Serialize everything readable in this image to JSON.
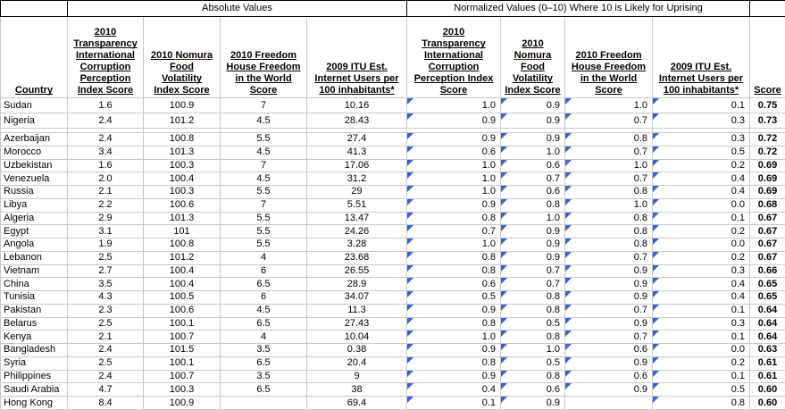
{
  "sections": {
    "absolute": "Absolute Values",
    "normalized": "Normalized Values (0–10) Where 10 is Likely for Uprising"
  },
  "misspelled_word": "Nomura",
  "columns": {
    "country": "Country",
    "abs_corruption": [
      "2010",
      "Transparency",
      "International",
      "Corruption",
      "Perception",
      "Index Score"
    ],
    "abs_nomura": [
      "2010 Nomura",
      "Food",
      "Volatility",
      "Index Score"
    ],
    "abs_freedom": [
      "2010 Freedom",
      "House Freedom",
      "in the World",
      "Score"
    ],
    "abs_itu": [
      "2009 ITU Est.",
      "Internet Users per",
      "100 inhabitants*"
    ],
    "norm_corruption": [
      "2010",
      "Transparency",
      "International",
      "Corruption",
      "Perception Index",
      "Score"
    ],
    "norm_nomura": [
      "2010",
      "Nomura",
      "Food",
      "Volatility",
      "Index Score"
    ],
    "norm_freedom": [
      "2010 Freedom",
      "House Freedom",
      "in the World",
      "Score"
    ],
    "norm_itu": [
      "2009 ITU Est.",
      "Internet Users per",
      "100 inhabitants*"
    ],
    "score": "Score"
  },
  "colors": {
    "comment_triangle": "#3a5fd9",
    "gridline": "#c8c8c8",
    "section_border": "#000000"
  },
  "rows": [
    {
      "country": "Sudan",
      "abs": [
        "1.6",
        "100.9",
        "7",
        "10.16"
      ],
      "norm": [
        "1.0",
        "0.9",
        "1.0",
        "0.1"
      ],
      "score": "0.75"
    },
    {
      "country": "Nigeria",
      "abs": [
        "2.4",
        "101.2",
        "4.5",
        "28.43"
      ],
      "norm": [
        "0.9",
        "0.9",
        "0.7",
        "0.3"
      ],
      "score": "0.73"
    },
    {
      "country": "Azerbaijan",
      "abs": [
        "2.4",
        "100.8",
        "5.5",
        "27.4"
      ],
      "norm": [
        "0.9",
        "0.9",
        "0.8",
        "0.3"
      ],
      "score": "0.72"
    },
    {
      "country": "Morocco",
      "abs": [
        "3.4",
        "101.3",
        "4.5",
        "41.3"
      ],
      "norm": [
        "0.6",
        "1.0",
        "0.7",
        "0.5"
      ],
      "score": "0.72"
    },
    {
      "country": "Uzbekistan",
      "abs": [
        "1.6",
        "100.3",
        "7",
        "17.06"
      ],
      "norm": [
        "1.0",
        "0.6",
        "1.0",
        "0.2"
      ],
      "score": "0.69"
    },
    {
      "country": "Venezuela",
      "abs": [
        "2.0",
        "100.4",
        "4.5",
        "31.2"
      ],
      "norm": [
        "1.0",
        "0.7",
        "0.7",
        "0.4"
      ],
      "score": "0.69"
    },
    {
      "country": "Russia",
      "abs": [
        "2.1",
        "100.3",
        "5.5",
        "29"
      ],
      "norm": [
        "1.0",
        "0.6",
        "0.8",
        "0.4"
      ],
      "score": "0.69"
    },
    {
      "country": "Libya",
      "abs": [
        "2.2",
        "100.6",
        "7",
        "5.51"
      ],
      "norm": [
        "0.9",
        "0.8",
        "1.0",
        "0.0"
      ],
      "score": "0.68"
    },
    {
      "country": "Algeria",
      "abs": [
        "2.9",
        "101.3",
        "5.5",
        "13.47"
      ],
      "norm": [
        "0.8",
        "1.0",
        "0.8",
        "0.1"
      ],
      "score": "0.67"
    },
    {
      "country": "Egypt",
      "abs": [
        "3.1",
        "101",
        "5.5",
        "24.26"
      ],
      "norm": [
        "0.7",
        "0.9",
        "0.8",
        "0.2"
      ],
      "score": "0.67"
    },
    {
      "country": "Angola",
      "abs": [
        "1.9",
        "100.8",
        "5.5",
        "3.28"
      ],
      "norm": [
        "1.0",
        "0.9",
        "0.8",
        "0.0"
      ],
      "score": "0.67"
    },
    {
      "country": "Lebanon",
      "abs": [
        "2.5",
        "101.2",
        "4",
        "23.68"
      ],
      "norm": [
        "0.8",
        "0.9",
        "0.7",
        "0.2"
      ],
      "score": "0.67"
    },
    {
      "country": "Vietnam",
      "abs": [
        "2.7",
        "100.4",
        "6",
        "26.55"
      ],
      "norm": [
        "0.8",
        "0.7",
        "0.9",
        "0.3"
      ],
      "score": "0.66"
    },
    {
      "country": "China",
      "abs": [
        "3.5",
        "100.4",
        "6.5",
        "28.9"
      ],
      "norm": [
        "0.6",
        "0.7",
        "0.9",
        "0.4"
      ],
      "score": "0.65"
    },
    {
      "country": "Tunisia",
      "abs": [
        "4.3",
        "100.5",
        "6",
        "34.07"
      ],
      "norm": [
        "0.5",
        "0.8",
        "0.9",
        "0.4"
      ],
      "score": "0.65"
    },
    {
      "country": "Pakistan",
      "abs": [
        "2.3",
        "100.6",
        "4.5",
        "11.3"
      ],
      "norm": [
        "0.9",
        "0.8",
        "0.7",
        "0.1"
      ],
      "score": "0.64"
    },
    {
      "country": "Belarus",
      "abs": [
        "2.5",
        "100.1",
        "6.5",
        "27.43"
      ],
      "norm": [
        "0.8",
        "0.5",
        "0.9",
        "0.3"
      ],
      "score": "0.64"
    },
    {
      "country": "Kenya",
      "abs": [
        "2.1",
        "100.7",
        "4",
        "10.04"
      ],
      "norm": [
        "1.0",
        "0.8",
        "0.7",
        "0.1"
      ],
      "score": "0.64"
    },
    {
      "country": "Bangladesh",
      "abs": [
        "2.4",
        "101.5",
        "3.5",
        "0.38"
      ],
      "norm": [
        "0.9",
        "1.0",
        "0.6",
        "0.0"
      ],
      "score": "0.63"
    },
    {
      "country": "Syria",
      "abs": [
        "2.5",
        "100.1",
        "6.5",
        "20.4"
      ],
      "norm": [
        "0.8",
        "0.5",
        "0.9",
        "0.2"
      ],
      "score": "0.61"
    },
    {
      "country": "Philippines",
      "abs": [
        "2.4",
        "100.7",
        "3.5",
        "9"
      ],
      "norm": [
        "0.9",
        "0.8",
        "0.6",
        "0.1"
      ],
      "score": "0.61"
    },
    {
      "country": "Saudi Arabia",
      "abs": [
        "4.7",
        "100.3",
        "6.5",
        "38"
      ],
      "norm": [
        "0.4",
        "0.6",
        "0.9",
        "0.5"
      ],
      "score": "0.60"
    },
    {
      "country": "Hong Kong",
      "abs": [
        "8.4",
        "100.9",
        "",
        "69.4"
      ],
      "norm": [
        "0.1",
        "0.9",
        null,
        "0.8"
      ],
      "score": "0.60"
    }
  ]
}
